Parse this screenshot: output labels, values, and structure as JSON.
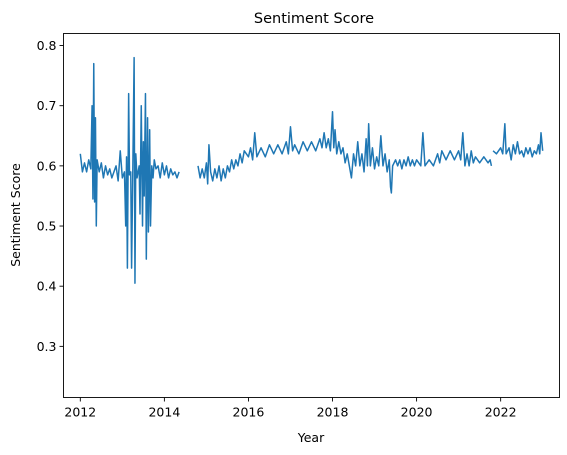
{
  "chart_data": {
    "type": "line",
    "title": "Sentiment Score",
    "xlabel": "Year",
    "ylabel": "Sentiment Score",
    "xlim": [
      2011.6,
      2023.4
    ],
    "ylim": [
      0.215,
      0.82
    ],
    "xticks": [
      2012,
      2014,
      2016,
      2018,
      2020,
      2022
    ],
    "yticks": [
      0.3,
      0.4,
      0.5,
      0.6,
      0.7,
      0.8
    ],
    "ytick_labels": [
      "0.3",
      "0.4",
      "0.5",
      "0.6",
      "0.7",
      "0.8"
    ],
    "grid": false,
    "legend": "none",
    "series": [
      {
        "color": "#1f77b4",
        "segments": [
          [
            [
              2012.0,
              0.62
            ],
            [
              2012.05,
              0.59
            ],
            [
              2012.1,
              0.605
            ],
            [
              2012.15,
              0.59
            ],
            [
              2012.2,
              0.61
            ],
            [
              2012.25,
              0.595
            ],
            [
              2012.28,
              0.7
            ],
            [
              2012.3,
              0.545
            ],
            [
              2012.32,
              0.77
            ],
            [
              2012.34,
              0.54
            ],
            [
              2012.36,
              0.68
            ],
            [
              2012.38,
              0.5
            ],
            [
              2012.4,
              0.61
            ],
            [
              2012.45,
              0.59
            ],
            [
              2012.5,
              0.605
            ],
            [
              2012.55,
              0.58
            ],
            [
              2012.6,
              0.6
            ],
            [
              2012.65,
              0.585
            ],
            [
              2012.7,
              0.595
            ],
            [
              2012.75,
              0.58
            ],
            [
              2012.8,
              0.59
            ],
            [
              2012.85,
              0.6
            ],
            [
              2012.9,
              0.575
            ],
            [
              2012.95,
              0.625
            ],
            [
              2013.0,
              0.58
            ],
            [
              2013.05,
              0.59
            ],
            [
              2013.08,
              0.5
            ],
            [
              2013.1,
              0.615
            ],
            [
              2013.12,
              0.43
            ],
            [
              2013.15,
              0.72
            ],
            [
              2013.17,
              0.585
            ],
            [
              2013.2,
              0.59
            ],
            [
              2013.22,
              0.43
            ],
            [
              2013.25,
              0.6
            ],
            [
              2013.28,
              0.78
            ],
            [
              2013.3,
              0.405
            ],
            [
              2013.32,
              0.62
            ],
            [
              2013.35,
              0.58
            ],
            [
              2013.4,
              0.6
            ],
            [
              2013.42,
              0.52
            ],
            [
              2013.45,
              0.7
            ],
            [
              2013.48,
              0.5
            ],
            [
              2013.5,
              0.64
            ],
            [
              2013.52,
              0.55
            ],
            [
              2013.55,
              0.72
            ],
            [
              2013.57,
              0.445
            ],
            [
              2013.6,
              0.68
            ],
            [
              2013.62,
              0.49
            ],
            [
              2013.65,
              0.66
            ],
            [
              2013.67,
              0.5
            ],
            [
              2013.7,
              0.6
            ],
            [
              2013.73,
              0.58
            ],
            [
              2013.76,
              0.61
            ],
            [
              2013.8,
              0.595
            ],
            [
              2013.85,
              0.6
            ],
            [
              2013.9,
              0.58
            ],
            [
              2013.95,
              0.605
            ],
            [
              2014.0,
              0.585
            ],
            [
              2014.05,
              0.6
            ],
            [
              2014.1,
              0.58
            ],
            [
              2014.15,
              0.595
            ],
            [
              2014.2,
              0.585
            ],
            [
              2014.25,
              0.59
            ],
            [
              2014.3,
              0.58
            ],
            [
              2014.35,
              0.59
            ]
          ],
          [
            [
              2014.8,
              0.6
            ],
            [
              2014.85,
              0.58
            ],
            [
              2014.9,
              0.595
            ],
            [
              2014.95,
              0.58
            ],
            [
              2015.0,
              0.605
            ],
            [
              2015.03,
              0.57
            ],
            [
              2015.06,
              0.635
            ],
            [
              2015.1,
              0.59
            ],
            [
              2015.15,
              0.575
            ],
            [
              2015.2,
              0.595
            ],
            [
              2015.25,
              0.58
            ],
            [
              2015.3,
              0.6
            ],
            [
              2015.35,
              0.575
            ],
            [
              2015.4,
              0.595
            ],
            [
              2015.45,
              0.58
            ],
            [
              2015.5,
              0.6
            ],
            [
              2015.55,
              0.59
            ],
            [
              2015.6,
              0.61
            ],
            [
              2015.65,
              0.595
            ],
            [
              2015.7,
              0.61
            ],
            [
              2015.75,
              0.6
            ],
            [
              2015.8,
              0.62
            ],
            [
              2015.85,
              0.605
            ],
            [
              2015.9,
              0.625
            ],
            [
              2016.0,
              0.615
            ],
            [
              2016.05,
              0.63
            ],
            [
              2016.1,
              0.61
            ],
            [
              2016.15,
              0.655
            ],
            [
              2016.2,
              0.615
            ],
            [
              2016.3,
              0.63
            ],
            [
              2016.4,
              0.615
            ],
            [
              2016.5,
              0.635
            ],
            [
              2016.6,
              0.62
            ],
            [
              2016.7,
              0.635
            ],
            [
              2016.8,
              0.62
            ],
            [
              2016.9,
              0.64
            ],
            [
              2016.95,
              0.62
            ],
            [
              2017.0,
              0.665
            ],
            [
              2017.05,
              0.625
            ],
            [
              2017.1,
              0.635
            ],
            [
              2017.2,
              0.62
            ],
            [
              2017.3,
              0.64
            ],
            [
              2017.4,
              0.625
            ],
            [
              2017.5,
              0.64
            ],
            [
              2017.6,
              0.625
            ],
            [
              2017.7,
              0.645
            ],
            [
              2017.75,
              0.63
            ],
            [
              2017.8,
              0.655
            ],
            [
              2017.85,
              0.63
            ],
            [
              2017.9,
              0.645
            ],
            [
              2017.95,
              0.625
            ],
            [
              2018.0,
              0.69
            ],
            [
              2018.03,
              0.63
            ],
            [
              2018.06,
              0.66
            ],
            [
              2018.1,
              0.62
            ],
            [
              2018.15,
              0.64
            ],
            [
              2018.2,
              0.62
            ],
            [
              2018.25,
              0.63
            ],
            [
              2018.3,
              0.605
            ],
            [
              2018.35,
              0.62
            ],
            [
              2018.4,
              0.6
            ],
            [
              2018.45,
              0.58
            ],
            [
              2018.5,
              0.62
            ],
            [
              2018.55,
              0.6
            ],
            [
              2018.6,
              0.64
            ],
            [
              2018.65,
              0.6
            ],
            [
              2018.7,
              0.62
            ],
            [
              2018.75,
              0.59
            ],
            [
              2018.8,
              0.645
            ],
            [
              2018.83,
              0.6
            ],
            [
              2018.86,
              0.67
            ],
            [
              2018.9,
              0.6
            ],
            [
              2018.95,
              0.63
            ],
            [
              2019.0,
              0.595
            ],
            [
              2019.05,
              0.615
            ],
            [
              2019.1,
              0.6
            ],
            [
              2019.15,
              0.65
            ],
            [
              2019.2,
              0.6
            ],
            [
              2019.25,
              0.62
            ],
            [
              2019.3,
              0.59
            ],
            [
              2019.35,
              0.61
            ],
            [
              2019.38,
              0.565
            ],
            [
              2019.4,
              0.555
            ],
            [
              2019.43,
              0.6
            ],
            [
              2019.5,
              0.61
            ],
            [
              2019.55,
              0.6
            ],
            [
              2019.6,
              0.61
            ],
            [
              2019.65,
              0.595
            ],
            [
              2019.7,
              0.61
            ],
            [
              2019.75,
              0.6
            ],
            [
              2019.8,
              0.615
            ],
            [
              2019.85,
              0.6
            ],
            [
              2019.9,
              0.61
            ],
            [
              2019.95,
              0.6
            ],
            [
              2020.0,
              0.61
            ],
            [
              2020.1,
              0.6
            ],
            [
              2020.15,
              0.655
            ],
            [
              2020.2,
              0.6
            ],
            [
              2020.3,
              0.61
            ],
            [
              2020.4,
              0.6
            ],
            [
              2020.5,
              0.62
            ],
            [
              2020.55,
              0.605
            ],
            [
              2020.6,
              0.625
            ],
            [
              2020.7,
              0.61
            ],
            [
              2020.8,
              0.625
            ],
            [
              2020.9,
              0.61
            ],
            [
              2021.0,
              0.625
            ],
            [
              2021.05,
              0.61
            ],
            [
              2021.1,
              0.655
            ],
            [
              2021.15,
              0.6
            ],
            [
              2021.2,
              0.62
            ],
            [
              2021.25,
              0.6
            ],
            [
              2021.3,
              0.625
            ],
            [
              2021.35,
              0.605
            ],
            [
              2021.4,
              0.615
            ],
            [
              2021.5,
              0.605
            ],
            [
              2021.6,
              0.615
            ],
            [
              2021.7,
              0.605
            ],
            [
              2021.75,
              0.61
            ],
            [
              2021.78,
              0.6
            ]
          ],
          [
            [
              2021.82,
              0.625
            ],
            [
              2021.9,
              0.62
            ],
            [
              2022.0,
              0.63
            ],
            [
              2022.05,
              0.62
            ],
            [
              2022.1,
              0.67
            ],
            [
              2022.13,
              0.62
            ],
            [
              2022.2,
              0.63
            ],
            [
              2022.25,
              0.61
            ],
            [
              2022.3,
              0.635
            ],
            [
              2022.35,
              0.62
            ],
            [
              2022.4,
              0.64
            ],
            [
              2022.45,
              0.62
            ],
            [
              2022.5,
              0.625
            ],
            [
              2022.55,
              0.615
            ],
            [
              2022.6,
              0.63
            ],
            [
              2022.65,
              0.62
            ],
            [
              2022.7,
              0.63
            ],
            [
              2022.75,
              0.615
            ],
            [
              2022.8,
              0.625
            ],
            [
              2022.85,
              0.62
            ],
            [
              2022.9,
              0.635
            ],
            [
              2022.93,
              0.62
            ],
            [
              2022.96,
              0.655
            ],
            [
              2023.0,
              0.625
            ]
          ]
        ]
      }
    ]
  }
}
